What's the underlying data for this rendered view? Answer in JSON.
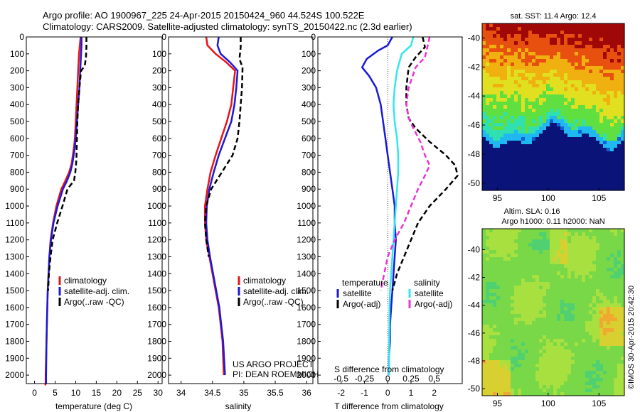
{
  "header": {
    "line1": "Argo profile: AO 1900967_225 24-Apr-2015 20150424_960 44.524S 100.522E",
    "line2": "Climatology: CARS2009. Satellite-adjusted climatology: synTS_20150422.nc (2.3d earlier)"
  },
  "colors": {
    "red": "#e8141a",
    "blue": "#1a1ad6",
    "black": "#000000",
    "cyan": "#33e6ee",
    "magenta": "#ee33d8"
  },
  "credits": {
    "line1": "US ARGO PROJECT",
    "line2": "PI: DEAN ROEMMICH",
    "imos": "©IMOS 30-Apr-2015 20:42:30"
  },
  "chart_data": [
    {
      "type": "line",
      "xlabel": "temperature (deg C)",
      "xlim": [
        -2,
        31
      ],
      "ylim": [
        2050,
        0
      ],
      "xticks": [
        0,
        5,
        10,
        15,
        20,
        25,
        30
      ],
      "yticks": [
        0,
        100,
        200,
        300,
        400,
        500,
        600,
        700,
        800,
        900,
        1000,
        1100,
        1200,
        1300,
        1400,
        1500,
        1600,
        1700,
        1800,
        1900,
        2000
      ],
      "legend": [
        "climatology",
        "satellite-adj. clim.",
        "Argo(..raw -QC)"
      ],
      "series": [
        {
          "name": "climatology",
          "color": "red",
          "style": "solid",
          "x": [
            11.2,
            11.0,
            10.8,
            10.6,
            10.4,
            10.2,
            10.0,
            9.8,
            9.6,
            9.3,
            9.0,
            8.4,
            7.5,
            6.5,
            5.3,
            4.5,
            3.9,
            3.6,
            3.4,
            3.2,
            3.1,
            3.0,
            2.9,
            2.8,
            2.7,
            2.7,
            2.6
          ],
          "y": [
            0,
            50,
            100,
            200,
            300,
            400,
            500,
            600,
            650,
            700,
            750,
            800,
            850,
            900,
            1000,
            1100,
            1200,
            1300,
            1400,
            1500,
            1600,
            1700,
            1800,
            1900,
            2000,
            2050,
            2060
          ]
        },
        {
          "name": "satellite-adj. clim.",
          "color": "blue",
          "style": "solid",
          "x": [
            11.4,
            11.4,
            11.3,
            11.1,
            10.9,
            10.6,
            10.3,
            10.0,
            9.8,
            9.5,
            9.2,
            8.7,
            7.9,
            6.9,
            5.6,
            4.6,
            4.0,
            3.6,
            3.4,
            3.2,
            3.1,
            3.0,
            2.9,
            2.85,
            2.8,
            2.8
          ],
          "y": [
            0,
            50,
            100,
            200,
            300,
            400,
            500,
            600,
            650,
            700,
            750,
            800,
            850,
            900,
            1000,
            1100,
            1200,
            1300,
            1400,
            1500,
            1600,
            1700,
            1800,
            1900,
            2000,
            2050
          ]
        },
        {
          "name": "Argo(..raw -QC)",
          "color": "black",
          "style": "dash",
          "x": [
            12.6,
            12.6,
            12.5,
            12.2,
            11.3,
            10.9,
            10.6,
            10.4,
            10.3,
            10.2,
            10.1,
            9.9,
            9.6,
            8.0,
            6.8,
            5.5,
            4.4,
            3.9,
            3.5,
            3.3
          ],
          "y": [
            0,
            60,
            120,
            170,
            200,
            300,
            400,
            500,
            600,
            700,
            750,
            800,
            850,
            900,
            1000,
            1100,
            1200,
            1300,
            1400,
            1500
          ]
        }
      ]
    },
    {
      "type": "line",
      "xlabel": "salinity",
      "xlim": [
        33.8,
        36.1
      ],
      "ylim": [
        2050,
        0
      ],
      "xticks": [
        34,
        34.5,
        35,
        35.5,
        36
      ],
      "legend": [
        "climatology",
        "satellite-adj. clim.",
        "Argo(..raw -QC)"
      ],
      "series": [
        {
          "name": "climatology",
          "color": "red",
          "style": "solid",
          "x": [
            34.4,
            34.42,
            34.55,
            34.72,
            34.86,
            34.83,
            34.8,
            34.73,
            34.64,
            34.55,
            34.47,
            34.42,
            34.38,
            34.38,
            34.4,
            34.45,
            34.5,
            34.55,
            34.6,
            34.63,
            34.66,
            34.68
          ],
          "y": [
            0,
            50,
            100,
            150,
            200,
            300,
            400,
            500,
            600,
            700,
            800,
            900,
            1000,
            1100,
            1200,
            1300,
            1400,
            1500,
            1600,
            1700,
            1800,
            2000
          ]
        },
        {
          "name": "satellite-adj. clim.",
          "color": "blue",
          "style": "solid",
          "x": [
            34.6,
            34.58,
            34.63,
            34.78,
            34.9,
            34.88,
            34.85,
            34.8,
            34.7,
            34.6,
            34.52,
            34.45,
            34.41,
            34.4,
            34.42,
            34.46,
            34.51,
            34.56,
            34.61,
            34.64,
            34.67,
            34.7
          ],
          "y": [
            0,
            50,
            100,
            150,
            200,
            300,
            400,
            500,
            600,
            700,
            800,
            900,
            1000,
            1100,
            1200,
            1300,
            1400,
            1500,
            1600,
            1700,
            1800,
            2000
          ]
        },
        {
          "name": "Argo(..raw -QC)",
          "color": "black",
          "style": "dash",
          "x": [
            34.95,
            34.95,
            34.93,
            34.98,
            34.97,
            34.95,
            34.93,
            34.9,
            34.82,
            34.65,
            34.48,
            34.4,
            34.38,
            34.4,
            34.44
          ],
          "y": [
            0,
            60,
            130,
            180,
            300,
            400,
            500,
            600,
            700,
            800,
            900,
            1000,
            1100,
            1200,
            1300
          ]
        }
      ]
    },
    {
      "type": "line",
      "xlabel": "T difference from climatology",
      "xlabel_top": "S difference from climatology",
      "xlim": [
        -3,
        3.2
      ],
      "ylim": [
        2050,
        0
      ],
      "xticks": [
        -2,
        -1,
        0,
        1,
        2
      ],
      "xticks_top": [
        -0.5,
        -0.25,
        0,
        0.25,
        0.5
      ],
      "xticklabels_top": [
        "-0.5",
        "-0.25",
        "0",
        "0.25",
        "0.5"
      ],
      "legend_titles": [
        "temperature",
        "salinity"
      ],
      "legend": [
        "satellite",
        "Argo(-adj)",
        "satellite",
        "Argo(-adj)"
      ],
      "series": [
        {
          "name": "satellite",
          "group": "temperature",
          "color": "blue",
          "style": "solid",
          "x": [
            0.2,
            0.0,
            -0.4,
            -0.9,
            -1.1,
            -0.8,
            -0.5,
            -0.3,
            -0.2,
            -0.1,
            0.0,
            0.1,
            0.2,
            0.3,
            0.3,
            0.35,
            0.3,
            0.25,
            0.2,
            0.15,
            0.1,
            0.1,
            0.05,
            0.05
          ],
          "y": [
            0,
            50,
            80,
            130,
            180,
            230,
            300,
            400,
            500,
            600,
            700,
            800,
            900,
            1000,
            1100,
            1200,
            1300,
            1400,
            1500,
            1600,
            1700,
            1800,
            1900,
            2000
          ]
        },
        {
          "name": "satellite",
          "group": "salinity",
          "color": "cyan",
          "style": "solid",
          "x": [
            1.1,
            1.0,
            0.6,
            0.4,
            0.3,
            0.25,
            0.3,
            0.4,
            0.45,
            0.45,
            0.4,
            0.35,
            0.3,
            0.25,
            0.2,
            0.15,
            0.1,
            0.08,
            0.05
          ],
          "y": [
            0,
            50,
            100,
            200,
            300,
            400,
            500,
            600,
            700,
            800,
            900,
            1000,
            1100,
            1200,
            1300,
            1400,
            1500,
            1600,
            2000
          ]
        },
        {
          "name": "Argo(-adj)",
          "group": "temperature",
          "color": "black",
          "style": "dash",
          "x": [
            1.5,
            1.6,
            1.2,
            0.9,
            0.8,
            0.8,
            0.9,
            1.2,
            1.8,
            2.5,
            2.9,
            3.0,
            2.5,
            1.8,
            1.3,
            1.0,
            0.7,
            0.4,
            0.2
          ],
          "y": [
            0,
            60,
            120,
            180,
            300,
            400,
            480,
            540,
            620,
            700,
            760,
            820,
            900,
            1000,
            1100,
            1200,
            1300,
            1400,
            1500
          ]
        },
        {
          "name": "Argo(-adj)",
          "group": "salinity",
          "color": "magenta",
          "style": "dash",
          "x": [
            1.8,
            1.7,
            1.6,
            1.2,
            0.9,
            0.8,
            0.9,
            1.1,
            1.4,
            1.6,
            1.8,
            1.6,
            1.3,
            1.0,
            0.7,
            0.3,
            0.0,
            -0.15,
            -0.3
          ],
          "y": [
            0,
            60,
            120,
            180,
            300,
            400,
            480,
            540,
            620,
            700,
            760,
            820,
            900,
            1000,
            1100,
            1200,
            1300,
            1400,
            1500
          ]
        }
      ]
    },
    {
      "type": "heatmap",
      "title": "sat. SST: 11.4  Argo: 12.4",
      "xlim": [
        93.5,
        107.5
      ],
      "ylim": [
        -50.5,
        -39.0
      ],
      "xticks": [
        95,
        100,
        105
      ],
      "yticks": [
        -40,
        -42,
        -44,
        -46,
        -48,
        -50
      ],
      "colormap": [
        "#0a1478",
        "#1060d8",
        "#20b8f0",
        "#30e0b0",
        "#60e040",
        "#e0e020",
        "#f0b010",
        "#e85010",
        "#a00808"
      ]
    },
    {
      "type": "heatmap",
      "title_line1": "Altim. SLA: 0.16",
      "title_line2": "Argo h1000: 0.11  h2000: NaN",
      "xlim": [
        93.5,
        107.5
      ],
      "ylim": [
        -50.5,
        -38.5
      ],
      "xticks": [
        95,
        100,
        105
      ],
      "yticks": [
        -40,
        -42,
        -44,
        -46,
        -48,
        -50
      ],
      "colormap": [
        "#30c8a0",
        "#50d070",
        "#78d848",
        "#a8e040",
        "#d8d030",
        "#f0a830"
      ]
    }
  ]
}
